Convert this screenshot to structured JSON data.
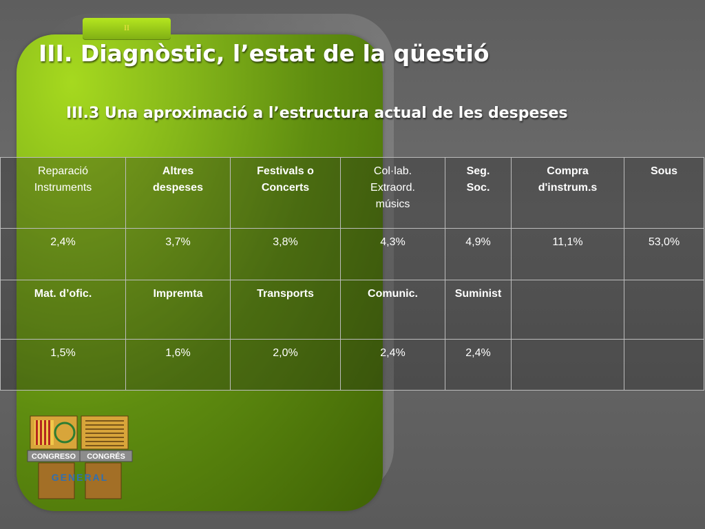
{
  "slide": {
    "tab_label": "II",
    "title": "III. Diagnòstic, l’estat de la qüestió",
    "subtitle": "III.3 Una aproximació a l’estructura actual de les despeses"
  },
  "table": {
    "row1": [
      {
        "line1": "Reparació",
        "line2": "Instruments",
        "line3": ""
      },
      {
        "line1": "Altres",
        "line2": "despeses",
        "line3": ""
      },
      {
        "line1": "Festivals o",
        "line2": "Concerts",
        "line3": ""
      },
      {
        "line1": "Col·lab.",
        "line2": "Extraord.",
        "line3": "músics"
      },
      {
        "line1": "Seg.",
        "line2": "Soc.",
        "line3": ""
      },
      {
        "line1": "Compra",
        "line2": "d'instrum.s",
        "line3": ""
      },
      {
        "line1": "Sous",
        "line2": "",
        "line3": ""
      }
    ],
    "row2": [
      "2,4%",
      "3,7%",
      "3,8%",
      "4,3%",
      "4,9%",
      "11,1%",
      "53,0%"
    ],
    "row3": [
      "Mat. d’ofic.",
      "Impremta",
      "Transports",
      "Comunic.",
      "Suminist",
      "",
      ""
    ],
    "row4": [
      "1,5%",
      "1,6%",
      "2,0%",
      "2,4%",
      "2,4%",
      "",
      ""
    ]
  },
  "logo": {
    "left_text": "CONGRESO",
    "right_text": "CONGRÉS",
    "bottom_text": "GENERAL",
    "colors": {
      "gold": "#d8a53a",
      "red": "#b3261e",
      "gray": "#8c8c8c",
      "green": "#2e7d32"
    }
  }
}
